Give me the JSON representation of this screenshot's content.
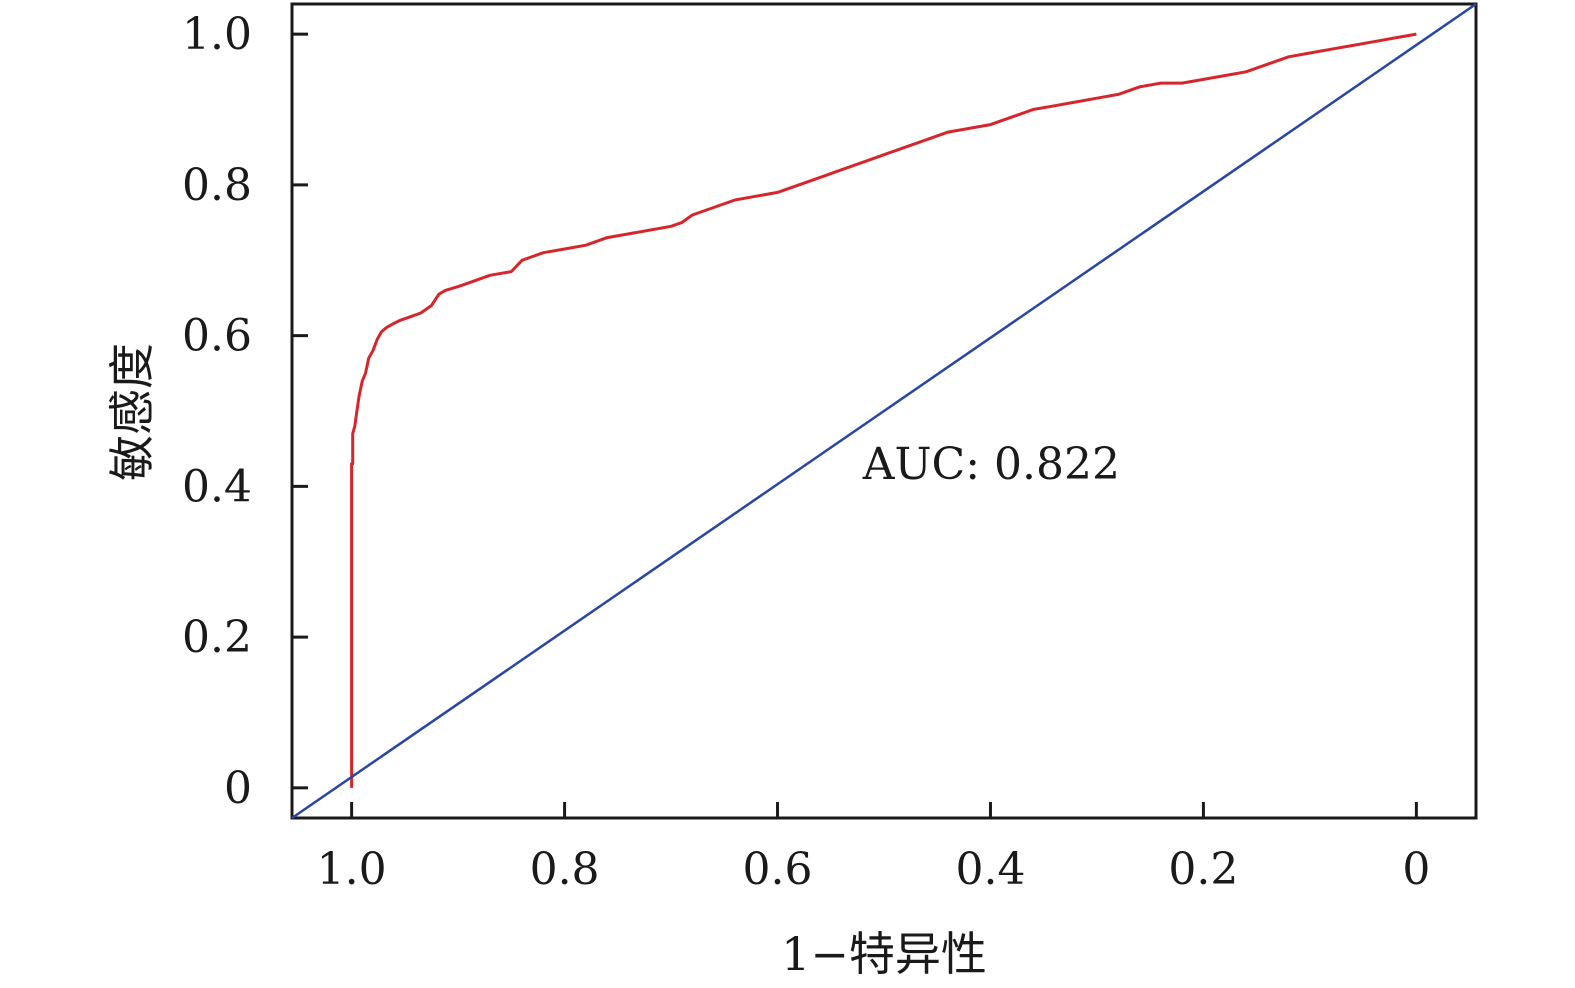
{
  "chart_data": {
    "type": "line",
    "xlabel": "1−特异性",
    "ylabel": "敏感度",
    "x_reversed": true,
    "xlim": [
      1.056,
      -0.056
    ],
    "ylim": [
      -0.04,
      1.04
    ],
    "x_ticks": [
      1.0,
      0.8,
      0.6,
      0.4,
      0.2,
      0
    ],
    "x_tick_labels": [
      "1.0",
      "0.8",
      "0.6",
      "0.4",
      "0.2",
      "0"
    ],
    "y_ticks": [
      0,
      0.2,
      0.4,
      0.6,
      0.8,
      1.0
    ],
    "y_tick_labels": [
      "0",
      "0.2",
      "0.4",
      "0.6",
      "0.8",
      "1.0"
    ],
    "grid": false,
    "annotations": [
      {
        "text": "AUC: 0.822",
        "x": 0.52,
        "y": 0.41
      }
    ],
    "series": [
      {
        "color": "#d7262b",
        "x": [
          1.0,
          1.0,
          0.999,
          0.999,
          0.997,
          0.995,
          0.993,
          0.99,
          0.987,
          0.984,
          0.98,
          0.976,
          0.972,
          0.968,
          0.962,
          0.955,
          0.945,
          0.935,
          0.925,
          0.918,
          0.912,
          0.9,
          0.89,
          0.88,
          0.87,
          0.85,
          0.84,
          0.83,
          0.82,
          0.8,
          0.78,
          0.76,
          0.74,
          0.72,
          0.7,
          0.69,
          0.68,
          0.66,
          0.64,
          0.62,
          0.6,
          0.58,
          0.56,
          0.54,
          0.52,
          0.5,
          0.48,
          0.46,
          0.44,
          0.42,
          0.4,
          0.38,
          0.36,
          0.34,
          0.32,
          0.3,
          0.28,
          0.26,
          0.24,
          0.22,
          0.2,
          0.18,
          0.16,
          0.14,
          0.12,
          0.1,
          0.08,
          0.06,
          0.04,
          0.02,
          0.0
        ],
        "y": [
          0.0,
          0.43,
          0.43,
          0.47,
          0.48,
          0.5,
          0.52,
          0.54,
          0.55,
          0.57,
          0.58,
          0.595,
          0.605,
          0.61,
          0.615,
          0.62,
          0.625,
          0.63,
          0.64,
          0.655,
          0.66,
          0.665,
          0.67,
          0.675,
          0.68,
          0.685,
          0.7,
          0.705,
          0.71,
          0.715,
          0.72,
          0.73,
          0.735,
          0.74,
          0.745,
          0.75,
          0.76,
          0.77,
          0.78,
          0.785,
          0.79,
          0.8,
          0.81,
          0.82,
          0.83,
          0.84,
          0.85,
          0.86,
          0.87,
          0.875,
          0.88,
          0.89,
          0.9,
          0.905,
          0.91,
          0.915,
          0.92,
          0.93,
          0.935,
          0.935,
          0.94,
          0.945,
          0.95,
          0.96,
          0.97,
          0.975,
          0.98,
          0.985,
          0.99,
          0.995,
          1.0
        ]
      },
      {
        "color": "#2a46a5",
        "x": [
          1.056,
          -0.056
        ],
        "y": [
          -0.04,
          1.04
        ]
      }
    ]
  }
}
